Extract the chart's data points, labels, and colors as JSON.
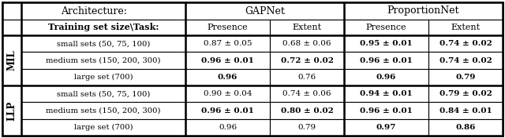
{
  "title_row": [
    "Architecture:",
    "GAPNet",
    "ProportionNet"
  ],
  "header_row": [
    "Training set size\\Task:",
    "Presence",
    "Extent",
    "Presence",
    "Extent"
  ],
  "mil_label": "MIL",
  "llp_label": "LLP",
  "mil_rows": [
    [
      "small sets (50, 75, 100)",
      "0.87 ± 0.05",
      "0.68 ± 0.06",
      "0.95 ± 0.01",
      "0.74 ± 0.02"
    ],
    [
      "medium sets (150, 200, 300)",
      "0.96 ± 0.01",
      "0.72 ± 0.02",
      "0.96 ± 0.01",
      "0.74 ± 0.02"
    ],
    [
      "large set (700)",
      "0.96",
      "0.76",
      "0.96",
      "0.79"
    ]
  ],
  "llp_rows": [
    [
      "small sets (50, 75, 100)",
      "0.90 ± 0.04",
      "0.74 ± 0.06",
      "0.94 ± 0.01",
      "0.79 ± 0.02"
    ],
    [
      "medium sets (150, 200, 300)",
      "0.96 ± 0.01",
      "0.80 ± 0.02",
      "0.96 ± 0.01",
      "0.84 ± 0.01"
    ],
    [
      "large set (700)",
      "0.96",
      "0.79",
      "0.97",
      "0.86"
    ]
  ],
  "mil_bold": [
    [
      false,
      false,
      false,
      true,
      true
    ],
    [
      false,
      true,
      true,
      true,
      true
    ],
    [
      false,
      true,
      false,
      true,
      true
    ]
  ],
  "llp_bold": [
    [
      false,
      false,
      false,
      true,
      true
    ],
    [
      false,
      true,
      true,
      true,
      true
    ],
    [
      false,
      false,
      false,
      true,
      true
    ]
  ],
  "figsize": [
    6.4,
    1.76
  ],
  "dpi": 100,
  "lw_thick": 1.8,
  "lw_thin": 0.8,
  "fontsize_header": 8.0,
  "fontsize_data": 7.5,
  "fontsize_label": 8.5,
  "fontsize_title": 9.0
}
